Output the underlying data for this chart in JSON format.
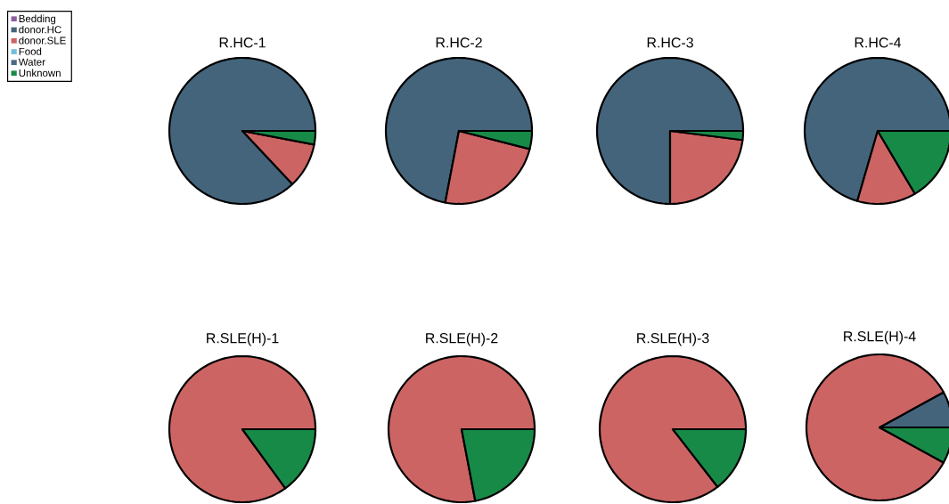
{
  "chart_data": [
    {
      "type": "pie",
      "title": "R.HC-1",
      "categories": [
        "Bedding",
        "donor.HC",
        "donor.SLE",
        "Food",
        "Water",
        "Unknown"
      ],
      "values": [
        0,
        87,
        10,
        0,
        0,
        3
      ],
      "colors": [
        "#8c5d9e",
        "#44647b",
        "#cd6464",
        "#74bedc",
        "#4a6a85",
        "#188a48"
      ],
      "legend": "left"
    },
    {
      "type": "pie",
      "title": "R.HC-2",
      "categories": [
        null,
        null,
        null,
        null,
        null,
        null
      ],
      "values": [
        0,
        72,
        24,
        0,
        0,
        4
      ],
      "colors": [
        "#8c5d9e",
        "#44647b",
        "#cd6464",
        "#74bedc",
        "#4a6a85",
        "#188a48"
      ]
    },
    {
      "type": "pie",
      "title": "R.HC-3",
      "categories": [
        null,
        null,
        null,
        null,
        null,
        null
      ],
      "values": [
        0,
        75,
        23,
        0,
        0,
        2
      ],
      "colors": [
        "#8c5d9e",
        "#44647b",
        "#cd6464",
        "#74bedc",
        "#4a6a85",
        "#188a48"
      ]
    },
    {
      "type": "pie",
      "title": "R.HC-4",
      "categories": [
        null,
        null,
        null,
        null,
        null,
        null
      ],
      "values": [
        0,
        70.5,
        13,
        0,
        0,
        16.5
      ],
      "colors": [
        "#8c5d9e",
        "#44647b",
        "#cd6464",
        "#74bedc",
        "#4a6a85",
        "#188a48"
      ]
    },
    {
      "type": "pie",
      "title": "R.SLE(H)-1",
      "categories": [
        null,
        null,
        null,
        null,
        null,
        null
      ],
      "values": [
        0,
        0,
        85,
        0,
        0,
        15
      ],
      "colors": [
        "#8c5d9e",
        "#44647b",
        "#cd6464",
        "#74bedc",
        "#4a6a85",
        "#188a48"
      ]
    },
    {
      "type": "pie",
      "title": "R.SLE(H)-2",
      "categories": [
        null,
        null,
        null,
        null,
        null,
        null
      ],
      "values": [
        0,
        0,
        78,
        0,
        0,
        22
      ],
      "colors": [
        "#8c5d9e",
        "#44647b",
        "#cd6464",
        "#74bedc",
        "#4a6a85",
        "#188a48"
      ]
    },
    {
      "type": "pie",
      "title": "R.SLE(H)-3",
      "categories": [
        null,
        null,
        null,
        null,
        null,
        null
      ],
      "values": [
        0,
        0,
        85.5,
        0,
        0,
        14.5
      ],
      "colors": [
        "#8c5d9e",
        "#44647b",
        "#cd6464",
        "#74bedc",
        "#4a6a85",
        "#188a48"
      ]
    },
    {
      "type": "pie",
      "title": "R.SLE(H)-4",
      "categories": [
        null,
        null,
        null,
        null,
        null,
        null
      ],
      "values": [
        0,
        8,
        84,
        0,
        0,
        8
      ],
      "colors": [
        "#8c5d9e",
        "#44647b",
        "#cd6464",
        "#74bedc",
        "#4a6a85",
        "#188a48"
      ]
    }
  ]
}
